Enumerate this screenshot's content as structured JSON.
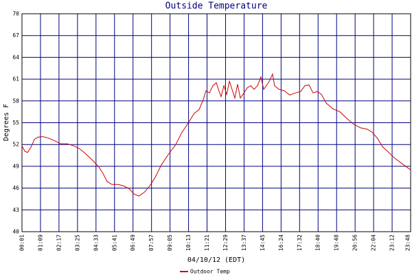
{
  "chart_data": {
    "type": "line",
    "title": "Outside Temperature",
    "xlabel": "04/10/12 (EDT)",
    "ylabel": "Degrees F",
    "xlim": [
      0,
      21
    ],
    "xticks": [
      {
        "value": 0,
        "label": "00:01"
      },
      {
        "value": 1,
        "label": "01:09"
      },
      {
        "value": 2,
        "label": "02:17"
      },
      {
        "value": 3,
        "label": "03:25"
      },
      {
        "value": 4,
        "label": "04:33"
      },
      {
        "value": 5,
        "label": "05:41"
      },
      {
        "value": 6,
        "label": "06:49"
      },
      {
        "value": 7,
        "label": "07:57"
      },
      {
        "value": 8,
        "label": "09:05"
      },
      {
        "value": 9,
        "label": "10:13"
      },
      {
        "value": 10,
        "label": "11:21"
      },
      {
        "value": 11,
        "label": "12:29"
      },
      {
        "value": 12,
        "label": "13:37"
      },
      {
        "value": 13,
        "label": "14:45"
      },
      {
        "value": 14,
        "label": "16:24"
      },
      {
        "value": 15,
        "label": "17:32"
      },
      {
        "value": 16,
        "label": "18:40"
      },
      {
        "value": 17,
        "label": "19:48"
      },
      {
        "value": 18,
        "label": "20:56"
      },
      {
        "value": 19,
        "label": "22:04"
      },
      {
        "value": 20,
        "label": "23:12"
      },
      {
        "value": 21,
        "label": "23:48"
      }
    ],
    "ylim": [
      40,
      70
    ],
    "yticks": [
      40,
      43,
      46,
      49,
      52,
      55,
      58,
      61,
      64,
      67,
      70
    ],
    "grid": true,
    "x": [
      0,
      0.15,
      0.3,
      0.48,
      0.67,
      0.85,
      1.11,
      1.41,
      1.78,
      2.08,
      2.45,
      2.82,
      3.12,
      3.45,
      3.82,
      4.16,
      4.38,
      4.6,
      4.86,
      5.19,
      5.49,
      5.79,
      6.05,
      6.31,
      6.6,
      6.9,
      7.2,
      7.53,
      7.9,
      8.31,
      8.65,
      9.02,
      9.31,
      9.57,
      9.8,
      9.94,
      10.13,
      10.32,
      10.5,
      10.61,
      10.76,
      10.91,
      11.06,
      11.21,
      11.35,
      11.5,
      11.65,
      11.8,
      11.99,
      12.17,
      12.36,
      12.54,
      12.73,
      12.91,
      13.06,
      13.21,
      13.36,
      13.54,
      13.65,
      13.88,
      14.17,
      14.47,
      14.77,
      15.06,
      15.29,
      15.51,
      15.73,
      15.96,
      16.18,
      16.44,
      16.81,
      17.18,
      17.55,
      17.92,
      18.29,
      18.66,
      18.92,
      19.22,
      19.48,
      19.78,
      20.15,
      20.52,
      21
    ],
    "series": [
      {
        "name": "Outdoor Temp",
        "color": "#cc0000",
        "values": [
          51.8,
          51.1,
          50.9,
          51.6,
          52.7,
          53.0,
          53.1,
          52.9,
          52.5,
          52.1,
          52.1,
          51.8,
          51.4,
          50.7,
          49.8,
          48.9,
          48.0,
          46.9,
          46.5,
          46.5,
          46.3,
          45.9,
          45.2,
          44.9,
          45.4,
          46.3,
          47.5,
          49.2,
          50.6,
          52.0,
          53.7,
          55.1,
          56.3,
          56.8,
          58.2,
          59.4,
          59.1,
          60.1,
          60.5,
          59.6,
          58.6,
          60.1,
          58.9,
          60.7,
          59.6,
          58.4,
          60.3,
          58.4,
          59.1,
          59.8,
          60.1,
          59.6,
          60.1,
          61.3,
          59.6,
          60.1,
          60.7,
          61.7,
          60.1,
          59.6,
          59.4,
          58.8,
          59.1,
          59.3,
          60.1,
          60.2,
          59.1,
          59.3,
          58.9,
          57.7,
          56.9,
          56.5,
          55.6,
          54.8,
          54.3,
          54.1,
          53.7,
          52.8,
          51.7,
          51.0,
          50.1,
          49.4,
          48.5
        ]
      }
    ]
  }
}
